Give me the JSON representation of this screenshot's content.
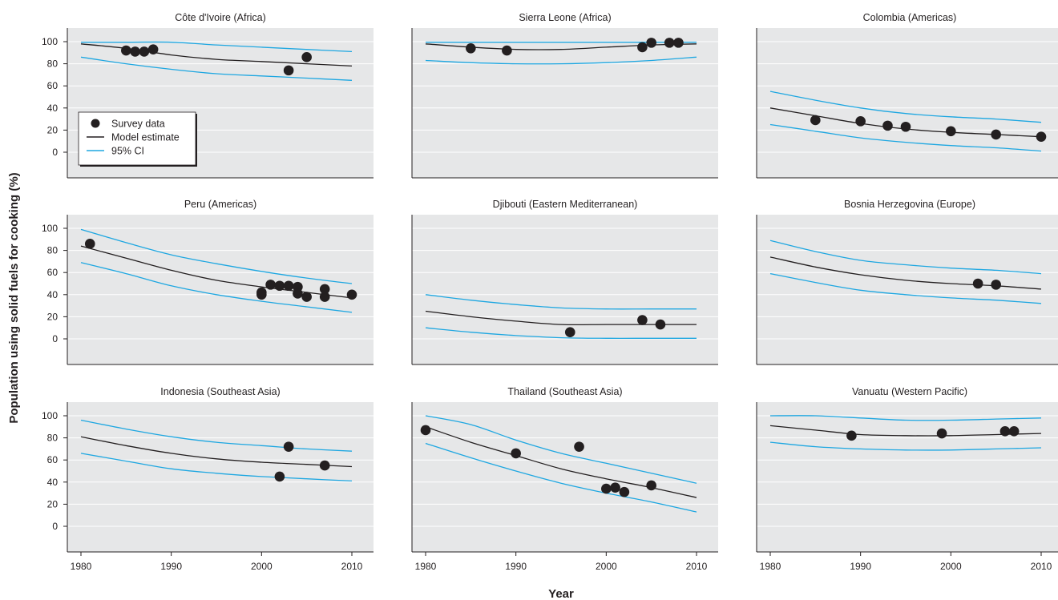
{
  "figure": {
    "ylabel": "Population using solid fuels for cooking (%)",
    "xlabel": "Year",
    "legend": {
      "placement": "inside first panel, lower-left",
      "entries": [
        {
          "label": "Survey data",
          "marker": "dot",
          "color": "#231f20"
        },
        {
          "label": "Model estimate",
          "marker": "line",
          "color": "#231f20"
        },
        {
          "label": "95% CI",
          "marker": "line",
          "color": "#1ea7e1"
        }
      ]
    },
    "colors": {
      "panel_bg": "#e6e7e8",
      "grid": "#ffffff",
      "estimate": "#231f20",
      "ci": "#1ea7e1",
      "points": "#231f20"
    }
  },
  "chart_data": [
    {
      "type": "line",
      "title": "Côte d'Ivoire (Africa)",
      "xlim": [
        1980,
        2010
      ],
      "ylim": [
        0,
        100
      ],
      "xticks": [
        "1980",
        "1990",
        "2000",
        "2010"
      ],
      "yticks": [
        "0",
        "20",
        "40",
        "60",
        "80",
        "100"
      ],
      "grid": true,
      "show_yticks": true,
      "show_xticks": false,
      "estimate": {
        "x": [
          1980,
          1985,
          1990,
          1995,
          2000,
          2005,
          2010
        ],
        "y": [
          98,
          94,
          88,
          84,
          82,
          80,
          78
        ]
      },
      "ci_upper": {
        "x": [
          1980,
          1985,
          1990,
          1995,
          2000,
          2005,
          2010
        ],
        "y": [
          99.5,
          99.5,
          99.5,
          97,
          95,
          93,
          91
        ]
      },
      "ci_lower": {
        "x": [
          1980,
          1985,
          1990,
          1995,
          2000,
          2005,
          2010
        ],
        "y": [
          86,
          80,
          75,
          71,
          69,
          67,
          65
        ]
      },
      "survey": {
        "x": [
          1985,
          1986,
          1987,
          1988,
          2003,
          2005
        ],
        "y": [
          92,
          91,
          91,
          93,
          74,
          86
        ]
      }
    },
    {
      "type": "line",
      "title": "Sierra Leone (Africa)",
      "xlim": [
        1980,
        2010
      ],
      "ylim": [
        0,
        100
      ],
      "xticks": [
        "1980",
        "1990",
        "2000",
        "2010"
      ],
      "yticks": [
        "0",
        "20",
        "40",
        "60",
        "80",
        "100"
      ],
      "grid": true,
      "show_yticks": false,
      "show_xticks": false,
      "estimate": {
        "x": [
          1980,
          1985,
          1990,
          1995,
          2000,
          2005,
          2010
        ],
        "y": [
          98,
          95,
          93,
          93,
          95,
          97,
          98
        ]
      },
      "ci_upper": {
        "x": [
          1980,
          1985,
          1990,
          1995,
          2000,
          2005,
          2010
        ],
        "y": [
          99.5,
          99.5,
          99.5,
          99.5,
          99.5,
          99.5,
          99.5
        ]
      },
      "ci_lower": {
        "x": [
          1980,
          1985,
          1990,
          1995,
          2000,
          2005,
          2010
        ],
        "y": [
          83,
          81,
          80,
          80,
          81,
          83,
          86
        ]
      },
      "survey": {
        "x": [
          1985,
          1989,
          2004,
          2005,
          2007,
          2008
        ],
        "y": [
          94,
          92,
          95,
          99,
          99,
          99
        ]
      }
    },
    {
      "type": "line",
      "title": "Colombia (Americas)",
      "xlim": [
        1980,
        2010
      ],
      "ylim": [
        0,
        100
      ],
      "xticks": [
        "1980",
        "1990",
        "2000",
        "2010"
      ],
      "yticks": [
        "0",
        "20",
        "40",
        "60",
        "80",
        "100"
      ],
      "grid": true,
      "show_yticks": false,
      "show_xticks": false,
      "estimate": {
        "x": [
          1980,
          1985,
          1990,
          1995,
          2000,
          2005,
          2010
        ],
        "y": [
          40,
          33,
          26,
          21,
          18,
          16,
          14
        ]
      },
      "ci_upper": {
        "x": [
          1980,
          1985,
          1990,
          1995,
          2000,
          2005,
          2010
        ],
        "y": [
          55,
          47,
          40,
          35,
          32,
          30,
          27
        ]
      },
      "ci_lower": {
        "x": [
          1980,
          1985,
          1990,
          1995,
          2000,
          2005,
          2010
        ],
        "y": [
          25,
          19,
          13,
          9,
          6,
          4,
          1
        ]
      },
      "survey": {
        "x": [
          1985,
          1990,
          1993,
          1995,
          2000,
          2005,
          2010
        ],
        "y": [
          29,
          28,
          24,
          23,
          19,
          16,
          14
        ]
      }
    },
    {
      "type": "line",
      "title": "Peru (Americas)",
      "xlim": [
        1980,
        2010
      ],
      "ylim": [
        0,
        100
      ],
      "xticks": [
        "1980",
        "1990",
        "2000",
        "2010"
      ],
      "yticks": [
        "0",
        "20",
        "40",
        "60",
        "80",
        "100"
      ],
      "grid": true,
      "show_yticks": true,
      "show_xticks": false,
      "estimate": {
        "x": [
          1980,
          1985,
          1990,
          1995,
          2000,
          2005,
          2010
        ],
        "y": [
          84,
          73,
          62,
          53,
          47,
          42,
          37
        ]
      },
      "ci_upper": {
        "x": [
          1980,
          1985,
          1990,
          1995,
          2000,
          2005,
          2010
        ],
        "y": [
          99,
          87,
          76,
          68,
          61,
          55,
          50
        ]
      },
      "ci_lower": {
        "x": [
          1980,
          1985,
          1990,
          1995,
          2000,
          2005,
          2010
        ],
        "y": [
          69,
          59,
          48,
          40,
          34,
          29,
          24
        ]
      },
      "survey": {
        "x": [
          1981,
          2000,
          2000,
          2001,
          2002,
          2003,
          2004,
          2004,
          2005,
          2007,
          2007,
          2010
        ],
        "y": [
          86,
          42,
          40,
          49,
          48,
          48,
          47,
          41,
          38,
          45,
          38,
          40
        ]
      }
    },
    {
      "type": "line",
      "title": "Djibouti (Eastern Mediterranean)",
      "xlim": [
        1980,
        2010
      ],
      "ylim": [
        0,
        100
      ],
      "xticks": [
        "1980",
        "1990",
        "2000",
        "2010"
      ],
      "yticks": [
        "0",
        "20",
        "40",
        "60",
        "80",
        "100"
      ],
      "grid": true,
      "show_yticks": false,
      "show_xticks": false,
      "estimate": {
        "x": [
          1980,
          1985,
          1990,
          1995,
          2000,
          2005,
          2010
        ],
        "y": [
          25,
          20,
          16,
          13,
          13,
          13,
          13
        ]
      },
      "ci_upper": {
        "x": [
          1980,
          1985,
          1990,
          1995,
          2000,
          2005,
          2010
        ],
        "y": [
          40,
          35,
          31,
          28,
          27,
          27,
          27
        ]
      },
      "ci_lower": {
        "x": [
          1980,
          1985,
          1990,
          1995,
          2000,
          2005,
          2010
        ],
        "y": [
          10,
          6,
          3,
          1,
          0.5,
          0.5,
          0.5
        ]
      },
      "survey": {
        "x": [
          1996,
          2004,
          2006
        ],
        "y": [
          6,
          17,
          13
        ]
      }
    },
    {
      "type": "line",
      "title": "Bosnia Herzegovina (Europe)",
      "xlim": [
        1980,
        2010
      ],
      "ylim": [
        0,
        100
      ],
      "xticks": [
        "1980",
        "1990",
        "2000",
        "2010"
      ],
      "yticks": [
        "0",
        "20",
        "40",
        "60",
        "80",
        "100"
      ],
      "grid": true,
      "show_yticks": false,
      "show_xticks": false,
      "estimate": {
        "x": [
          1980,
          1985,
          1990,
          1995,
          2000,
          2005,
          2010
        ],
        "y": [
          74,
          65,
          58,
          53,
          50,
          48,
          45
        ]
      },
      "ci_upper": {
        "x": [
          1980,
          1985,
          1990,
          1995,
          2000,
          2005,
          2010
        ],
        "y": [
          89,
          79,
          71,
          67,
          64,
          62,
          59
        ]
      },
      "ci_lower": {
        "x": [
          1980,
          1985,
          1990,
          1995,
          2000,
          2005,
          2010
        ],
        "y": [
          59,
          51,
          44,
          40,
          37,
          35,
          32
        ]
      },
      "survey": {
        "x": [
          2003,
          2005
        ],
        "y": [
          50,
          49
        ]
      }
    },
    {
      "type": "line",
      "title": "Indonesia (Southeast Asia)",
      "xlim": [
        1980,
        2010
      ],
      "ylim": [
        0,
        100
      ],
      "xticks": [
        "1980",
        "1990",
        "2000",
        "2010"
      ],
      "yticks": [
        "0",
        "20",
        "40",
        "60",
        "80",
        "100"
      ],
      "grid": true,
      "show_yticks": true,
      "show_xticks": true,
      "estimate": {
        "x": [
          1980,
          1985,
          1990,
          1995,
          2000,
          2005,
          2010
        ],
        "y": [
          81,
          73,
          66,
          61,
          58,
          56,
          54
        ]
      },
      "ci_upper": {
        "x": [
          1980,
          1985,
          1990,
          1995,
          2000,
          2005,
          2010
        ],
        "y": [
          96,
          88,
          81,
          76,
          73,
          70,
          68
        ]
      },
      "ci_lower": {
        "x": [
          1980,
          1985,
          1990,
          1995,
          2000,
          2005,
          2010
        ],
        "y": [
          66,
          59,
          52,
          48,
          45,
          43,
          41
        ]
      },
      "survey": {
        "x": [
          2002,
          2003,
          2007
        ],
        "y": [
          45,
          72,
          55
        ]
      }
    },
    {
      "type": "line",
      "title": "Thailand (Southeast Asia)",
      "xlim": [
        1980,
        2010
      ],
      "ylim": [
        0,
        100
      ],
      "xticks": [
        "1980",
        "1990",
        "2000",
        "2010"
      ],
      "yticks": [
        "0",
        "20",
        "40",
        "60",
        "80",
        "100"
      ],
      "grid": true,
      "show_yticks": false,
      "show_xticks": true,
      "estimate": {
        "x": [
          1980,
          1985,
          1990,
          1995,
          2000,
          2005,
          2010
        ],
        "y": [
          90,
          76,
          64,
          52,
          43,
          35,
          26
        ]
      },
      "ci_upper": {
        "x": [
          1980,
          1985,
          1990,
          1995,
          2000,
          2005,
          2010
        ],
        "y": [
          100,
          92,
          78,
          66,
          57,
          48,
          39
        ]
      },
      "ci_lower": {
        "x": [
          1980,
          1985,
          1990,
          1995,
          2000,
          2005,
          2010
        ],
        "y": [
          75,
          62,
          50,
          39,
          30,
          22,
          13
        ]
      },
      "survey": {
        "x": [
          1980,
          1990,
          1997,
          2000,
          2001,
          2002,
          2005
        ],
        "y": [
          87,
          66,
          72,
          34,
          35,
          31,
          37
        ]
      }
    },
    {
      "type": "line",
      "title": "Vanuatu (Western Pacific)",
      "xlim": [
        1980,
        2010
      ],
      "ylim": [
        0,
        100
      ],
      "xticks": [
        "1980",
        "1990",
        "2000",
        "2010"
      ],
      "yticks": [
        "0",
        "20",
        "40",
        "60",
        "80",
        "100"
      ],
      "grid": true,
      "show_yticks": false,
      "show_xticks": true,
      "estimate": {
        "x": [
          1980,
          1985,
          1990,
          1995,
          2000,
          2005,
          2010
        ],
        "y": [
          91,
          87,
          83,
          82,
          82,
          83,
          84
        ]
      },
      "ci_upper": {
        "x": [
          1980,
          1985,
          1990,
          1995,
          2000,
          2005,
          2010
        ],
        "y": [
          100,
          100,
          98,
          96,
          96,
          97,
          98
        ]
      },
      "ci_lower": {
        "x": [
          1980,
          1985,
          1990,
          1995,
          2000,
          2005,
          2010
        ],
        "y": [
          76,
          72,
          70,
          69,
          69,
          70,
          71
        ]
      },
      "survey": {
        "x": [
          1989,
          1999,
          2006,
          2007
        ],
        "y": [
          82,
          84,
          86,
          86
        ]
      }
    }
  ]
}
